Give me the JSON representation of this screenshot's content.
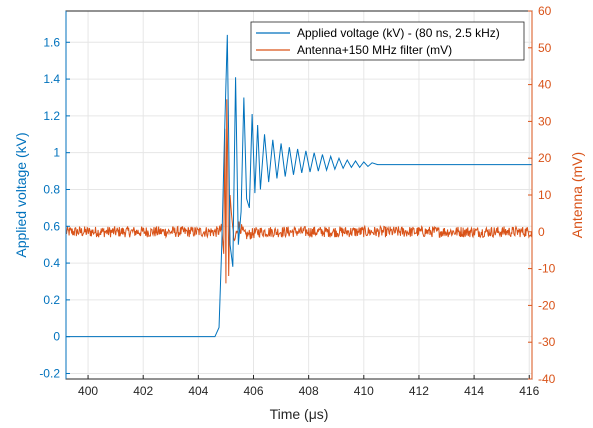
{
  "chart_data": {
    "type": "line",
    "xlabel": "Time (μs)",
    "ylabel_left": "Applied voltage (kV)",
    "ylabel_right": "Antenna (mV)",
    "xlim": [
      399.2,
      416.1
    ],
    "ylim_left": [
      -0.23,
      1.77
    ],
    "ylim_right": [
      -40,
      60
    ],
    "x_ticks": [
      400,
      402,
      404,
      406,
      408,
      410,
      412,
      414,
      416
    ],
    "y_left_ticks": [
      -0.2,
      0,
      0.2,
      0.4,
      0.6,
      0.8,
      1,
      1.2,
      1.4,
      1.6
    ],
    "y_right_ticks": [
      -40,
      -30,
      -20,
      -10,
      0,
      10,
      20,
      30,
      40,
      50,
      60
    ],
    "grid": true,
    "legend_position": "top-right",
    "series": [
      {
        "name": "Applied voltage (kV) - (80 ns, 2.5 kHz)",
        "axis": "left",
        "color": "#0072BD",
        "x": [
          399.2,
          404.6,
          404.75,
          404.85,
          404.95,
          405.05,
          405.15,
          405.25,
          405.35,
          405.45,
          405.55,
          405.65,
          405.75,
          405.85,
          405.95,
          406.05,
          406.15,
          406.25,
          406.4,
          406.55,
          406.7,
          406.85,
          407.0,
          407.15,
          407.3,
          407.45,
          407.6,
          407.75,
          407.9,
          408.05,
          408.2,
          408.35,
          408.5,
          408.65,
          408.8,
          408.95,
          409.1,
          409.25,
          409.4,
          409.55,
          409.7,
          409.85,
          410.0,
          410.15,
          410.3,
          410.5,
          411.0,
          412.0,
          413.0,
          414.0,
          415.0,
          416.1
        ],
        "y": [
          0.0,
          0.0,
          0.05,
          0.5,
          1.1,
          1.64,
          0.5,
          0.38,
          1.41,
          0.5,
          0.68,
          1.3,
          0.75,
          0.7,
          1.21,
          0.78,
          1.15,
          0.8,
          1.1,
          0.84,
          1.07,
          0.86,
          1.05,
          0.87,
          1.03,
          0.88,
          1.02,
          0.89,
          1.01,
          0.895,
          1.0,
          0.9,
          0.99,
          0.905,
          0.98,
          0.91,
          0.97,
          0.915,
          0.96,
          0.92,
          0.955,
          0.92,
          0.95,
          0.925,
          0.945,
          0.935,
          0.935,
          0.935,
          0.935,
          0.935,
          0.935,
          0.935
        ]
      },
      {
        "name": "Antenna+150 MHz filter (mV)",
        "axis": "right",
        "color": "#D95319",
        "noise_baseline_mV": 0,
        "noise_amplitude_mV": 1.5,
        "x": [
          399.2,
          404.7,
          404.85,
          404.92,
          404.96,
          405.0,
          405.03,
          405.06,
          405.1,
          405.15,
          405.2,
          405.3,
          405.45,
          405.7,
          406.2,
          416.1
        ],
        "y": [
          0,
          0,
          0.8,
          -6,
          28,
          -14,
          36,
          22,
          -12,
          10,
          5,
          -3,
          2,
          -1,
          0,
          0
        ]
      }
    ]
  }
}
